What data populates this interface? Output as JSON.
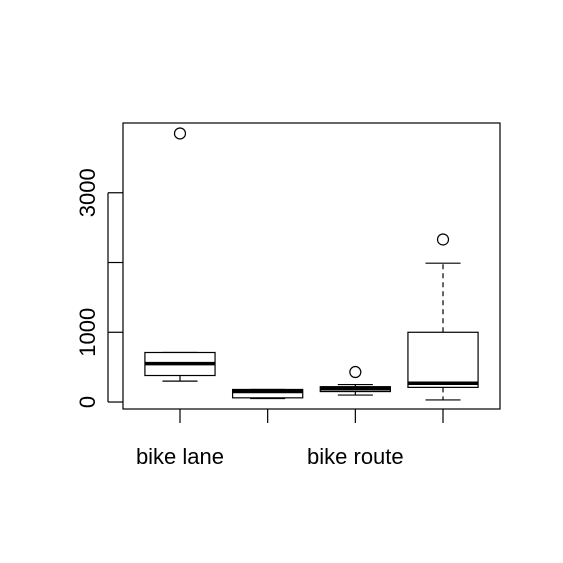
{
  "chart_data": {
    "type": "boxplot",
    "title": "",
    "xlabel": "",
    "ylabel": "",
    "ylim": [
      -100,
      4000
    ],
    "y_ticks": [
      0,
      1000,
      2000,
      3000
    ],
    "y_tick_labels": [
      "0",
      "1000",
      "",
      "3000"
    ],
    "categories": [
      "bike lane",
      "",
      "bike route",
      ""
    ],
    "boxes": [
      {
        "whisker_low": 300,
        "q1": 380,
        "median": 550,
        "q3": 710,
        "whisker_high": 710,
        "outliers": [
          3850
        ]
      },
      {
        "whisker_low": 50,
        "q1": 60,
        "median": 150,
        "q3": 180,
        "whisker_high": 180,
        "outliers": []
      },
      {
        "whisker_low": 100,
        "q1": 150,
        "median": 190,
        "q3": 220,
        "whisker_high": 250,
        "outliers": [
          430
        ]
      },
      {
        "whisker_low": 30,
        "q1": 210,
        "median": 270,
        "q3": 1000,
        "whisker_high": 1990,
        "outliers": [
          2330
        ]
      }
    ]
  }
}
